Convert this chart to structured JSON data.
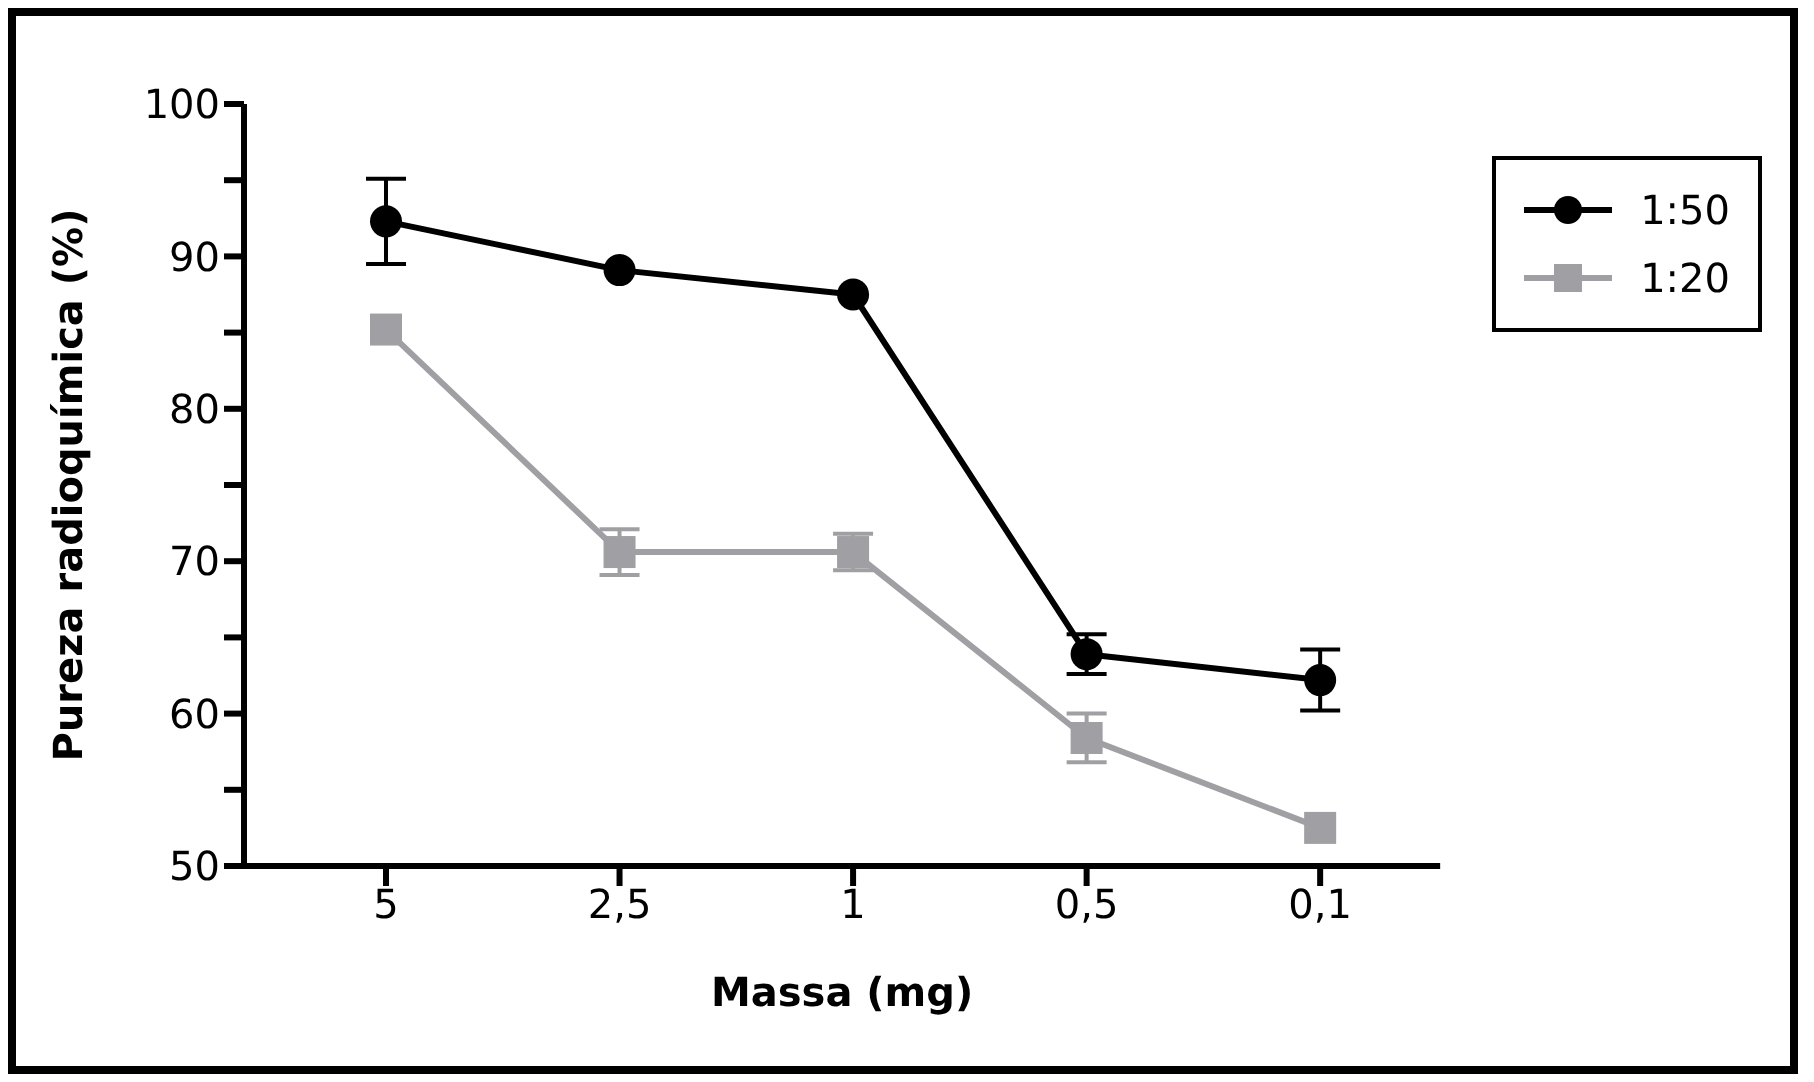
{
  "chart_data": {
    "type": "line",
    "xlabel": "Massa (mg)",
    "ylabel": "Pureza radioquímica (%)",
    "categories": [
      "5",
      "2,5",
      "1",
      "0,5",
      "0,1"
    ],
    "series": [
      {
        "name": "1:50",
        "color": "#000000",
        "marker": "circle",
        "values": [
          92.3,
          89.1,
          87.5,
          63.9,
          62.2
        ],
        "errors": [
          2.8,
          null,
          null,
          1.3,
          2.0
        ]
      },
      {
        "name": "1:20",
        "color": "#a0a0a4",
        "marker": "square",
        "values": [
          85.2,
          70.6,
          70.6,
          58.4,
          52.5
        ],
        "errors": [
          null,
          1.5,
          1.2,
          1.6,
          null
        ]
      }
    ],
    "ylim": [
      50,
      100
    ],
    "yticks": [
      50,
      {
        "value": 55,
        "label": null
      },
      60,
      {
        "value": 65,
        "label": null
      },
      70,
      {
        "value": 75,
        "label": null
      },
      80,
      {
        "value": 85,
        "label": null
      },
      90,
      {
        "value": 95,
        "label": null
      },
      100
    ],
    "grid": false,
    "legend": "top right",
    "line_style": "solid"
  }
}
